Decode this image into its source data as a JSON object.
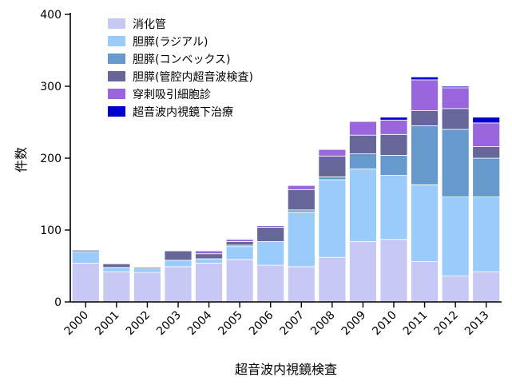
{
  "chart_data": {
    "type": "bar",
    "stacked": true,
    "xlabel": "超音波内視鏡検査",
    "ylabel": "件数",
    "ylim": [
      0,
      400
    ],
    "yticks": [
      0,
      100,
      200,
      300,
      400
    ],
    "grid": false,
    "legend_position": "top-left",
    "categories": [
      "2000",
      "2001",
      "2002",
      "2003",
      "2004",
      "2005",
      "2006",
      "2007",
      "2008",
      "2009",
      "2010",
      "2011",
      "2012",
      "2013"
    ],
    "series": [
      {
        "name": "消化管",
        "color": "#c8c8f4",
        "values": [
          54,
          42,
          41,
          49,
          54,
          59,
          51,
          49,
          62,
          84,
          87,
          56,
          36,
          42
        ]
      },
      {
        "name": "胆膵(ラジアル)",
        "color": "#99ccfa",
        "values": [
          16,
          6,
          5,
          9,
          6,
          18,
          33,
          76,
          108,
          101,
          89,
          107,
          110,
          104
        ]
      },
      {
        "name": "胆膵(コンベックス)",
        "color": "#6699cc",
        "values": [
          0,
          0,
          0,
          0,
          0,
          2,
          0,
          3,
          4,
          21,
          28,
          82,
          94,
          54
        ]
      },
      {
        "name": "胆膵(管腔内超音波検査)",
        "color": "#666699",
        "values": [
          2,
          5,
          2,
          13,
          7,
          5,
          20,
          28,
          29,
          26,
          29,
          21,
          29,
          16
        ]
      },
      {
        "name": "穿刺吸引細胞診",
        "color": "#9966dd",
        "values": [
          0,
          0,
          0,
          0,
          4,
          3,
          2,
          6,
          9,
          19,
          20,
          43,
          29,
          33
        ]
      },
      {
        "name": "超音波内視鏡下治療",
        "color": "#0000cc",
        "values": [
          0,
          0,
          0,
          0,
          0,
          0,
          0,
          0,
          0,
          0,
          4,
          4,
          2,
          8
        ]
      }
    ]
  }
}
